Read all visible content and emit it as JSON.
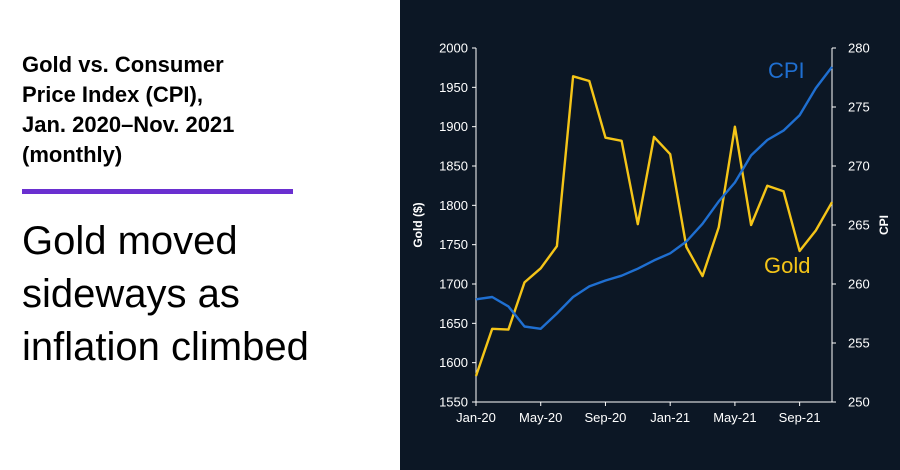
{
  "title_lines": [
    "Gold vs. Consumer",
    "Price Index (CPI),",
    "Jan. 2020–Nov. 2021",
    "(monthly)"
  ],
  "subtitle_lines": [
    "Gold moved",
    "sideways as",
    "inflation climbed"
  ],
  "colors": {
    "gold": "#f5c518",
    "cpi": "#1f6fd1",
    "accent_rule": "#6a2fd0",
    "chart_background": "#0c1725"
  },
  "chart_data": {
    "type": "line",
    "x": [
      "2020-01",
      "2020-02",
      "2020-03",
      "2020-04",
      "2020-05",
      "2020-06",
      "2020-07",
      "2020-08",
      "2020-09",
      "2020-10",
      "2020-11",
      "2020-12",
      "2021-01",
      "2021-02",
      "2021-03",
      "2021-04",
      "2021-05",
      "2021-06",
      "2021-07",
      "2021-08",
      "2021-09",
      "2021-10",
      "2021-11"
    ],
    "x_ticks": [
      "Jan-20",
      "May-20",
      "Sep-20",
      "Jan-21",
      "May-21",
      "Sep-21"
    ],
    "series": [
      {
        "name": "Gold",
        "axis": "left",
        "color": "#f5c518",
        "values": [
          1583,
          1643,
          1642,
          1702,
          1720,
          1748,
          1964,
          1958,
          1886,
          1882,
          1776,
          1887,
          1865,
          1747,
          1710,
          1772,
          1900,
          1775,
          1825,
          1818,
          1742,
          1768,
          1804
        ]
      },
      {
        "name": "CPI",
        "axis": "right",
        "color": "#1f6fd1",
        "values": [
          258.7,
          258.9,
          258.1,
          256.4,
          256.2,
          257.5,
          258.9,
          259.8,
          260.3,
          260.7,
          261.3,
          262.0,
          262.6,
          263.6,
          265.1,
          267.0,
          268.6,
          270.9,
          272.2,
          273.0,
          274.3,
          276.6,
          278.4
        ]
      }
    ],
    "y_left": {
      "label": "Gold ($)",
      "min": 1550,
      "max": 2000,
      "ticks": [
        1550,
        1600,
        1650,
        1700,
        1750,
        1800,
        1850,
        1900,
        1950,
        2000
      ]
    },
    "y_right": {
      "label": "CPI",
      "min": 250,
      "max": 280,
      "ticks": [
        250,
        255,
        260,
        265,
        270,
        275,
        280
      ]
    },
    "grid": false,
    "legend": "inline labels"
  }
}
